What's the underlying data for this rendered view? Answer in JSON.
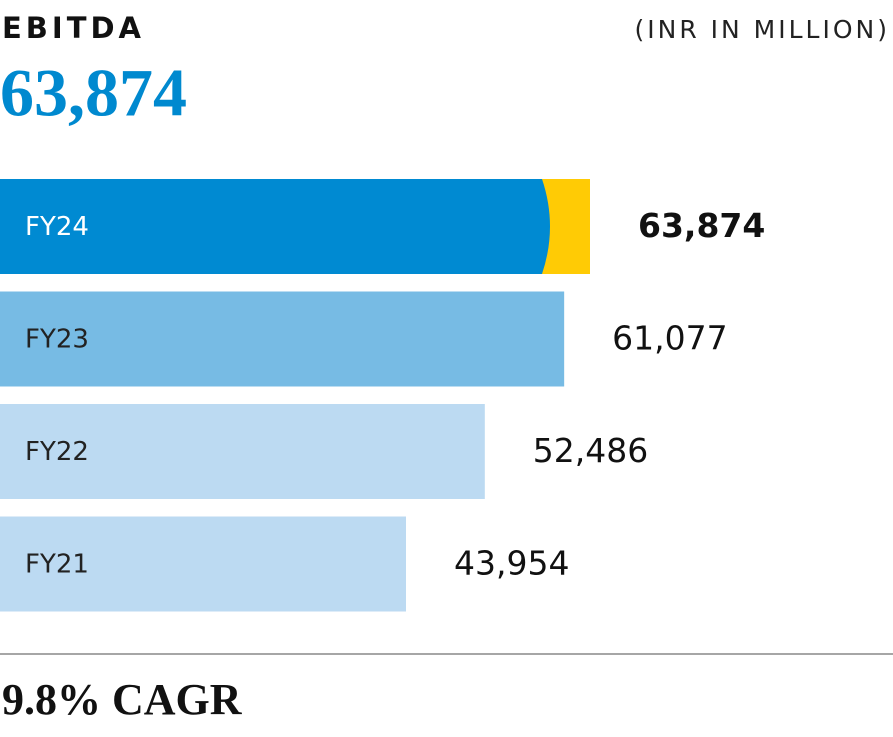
{
  "chart_data": {
    "type": "bar",
    "orientation": "horizontal",
    "title": "EBITDA",
    "unit_label": "(INR IN MILLION)",
    "headline": "63,874",
    "categories": [
      "FY24",
      "FY23",
      "FY22",
      "FY21"
    ],
    "values": [
      63874,
      61077,
      52486,
      43954
    ],
    "value_labels": [
      "63,874",
      "61,077",
      "52,486",
      "43,954"
    ],
    "colors": [
      "#008ad2",
      "#77bbe4",
      "#bcdaf2",
      "#bcdaf2"
    ],
    "highlight_color": "#ffcb05",
    "footer": "9.8% CAGR"
  }
}
